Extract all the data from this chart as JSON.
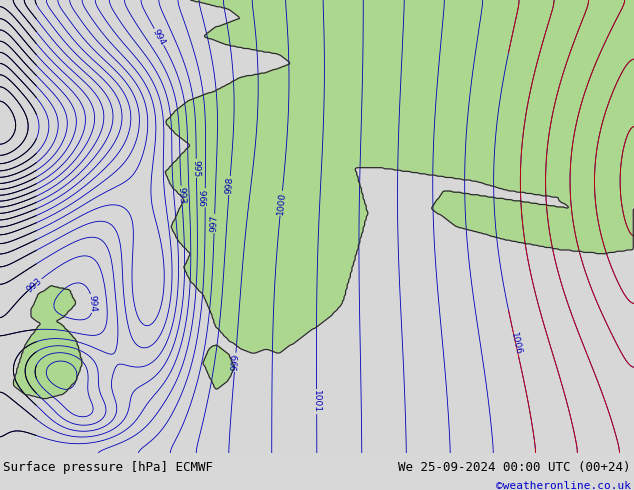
{
  "title_left": "Surface pressure [hPa] ECMWF",
  "title_right": "We 25-09-2024 00:00 UTC (00+24)",
  "copyright": "©weatheronline.co.uk",
  "bg_color": "#d8d8d8",
  "land_color_rgb": [
    0.678,
    0.847,
    0.557
  ],
  "sea_color_rgb": [
    0.847,
    0.847,
    0.847
  ],
  "contour_color_blue": "#0000bb",
  "contour_color_red": "#cc0000",
  "contour_color_black": "#000000",
  "label_fontsize": 6.5,
  "title_fontsize": 9,
  "copyright_fontsize": 8,
  "fig_width": 6.34,
  "fig_height": 4.9,
  "dpi": 100
}
